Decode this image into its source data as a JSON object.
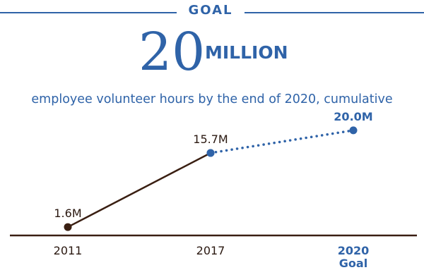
{
  "header": {
    "goal_label": "GOAL",
    "big_number": "20",
    "big_unit": "MILLION",
    "subtitle": "employee volunteer hours by the end of 2020, cumulative"
  },
  "colors": {
    "accent_blue": "#2f63a8",
    "actual_brown": "#3a1f12"
  },
  "chart_data": {
    "type": "line",
    "title": "",
    "xlabel": "",
    "ylabel": "",
    "ylim": [
      0,
      22
    ],
    "grid": false,
    "x": [
      "2011",
      "2017",
      "2020"
    ],
    "x_sublabels": [
      "",
      "",
      "Goal"
    ],
    "series": [
      {
        "name": "",
        "style": "solid",
        "color": "#3a1f12",
        "x": [
          "2011",
          "2017"
        ],
        "values": [
          1.6,
          15.7
        ],
        "labels": [
          "1.6M",
          "15.7M"
        ]
      },
      {
        "name": "",
        "style": "dotted",
        "color": "#2f63a8",
        "x": [
          "2017",
          "2020"
        ],
        "values": [
          15.7,
          20.0
        ],
        "labels": [
          "",
          "20.0M"
        ]
      }
    ]
  }
}
